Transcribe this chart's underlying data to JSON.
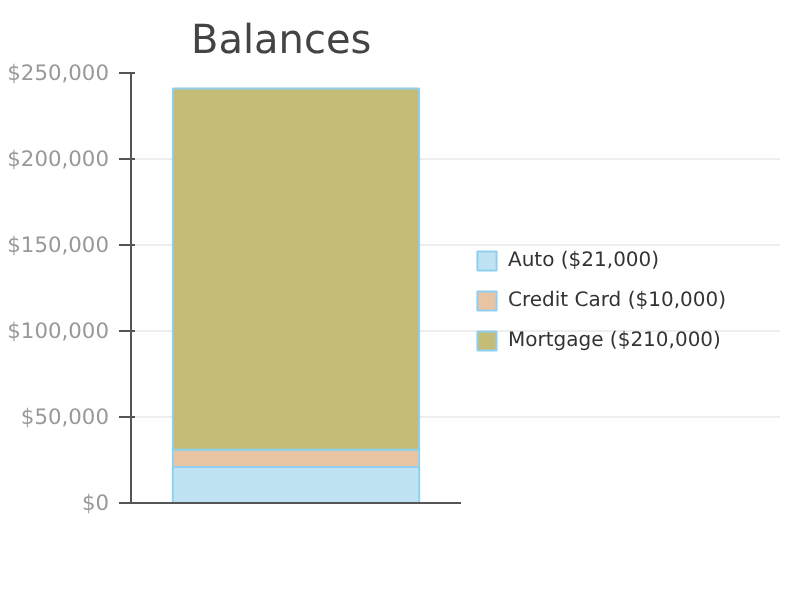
{
  "chart_data": {
    "type": "bar",
    "title": "Balances",
    "stacked": true,
    "categories": [
      null
    ],
    "series": [
      {
        "name": "Auto ($21,000)",
        "color": "#bfe3f2",
        "values": [
          21000
        ]
      },
      {
        "name": "Credit Card ($10,000)",
        "color": "#e9c4a2",
        "values": [
          10000
        ]
      },
      {
        "name": "Mortgage ($210,000)",
        "color": "#c4bd78",
        "values": [
          210000
        ]
      }
    ],
    "ylim": [
      0,
      250000
    ],
    "yticks": [
      {
        "value": 0,
        "label": "$0"
      },
      {
        "value": 50000,
        "label": "$50,000"
      },
      {
        "value": 100000,
        "label": "$100,000"
      },
      {
        "value": 150000,
        "label": "$150,000"
      },
      {
        "value": 200000,
        "label": "$200,000"
      },
      {
        "value": 250000,
        "label": "$250,000"
      }
    ],
    "grid": "y",
    "legend": "right"
  }
}
